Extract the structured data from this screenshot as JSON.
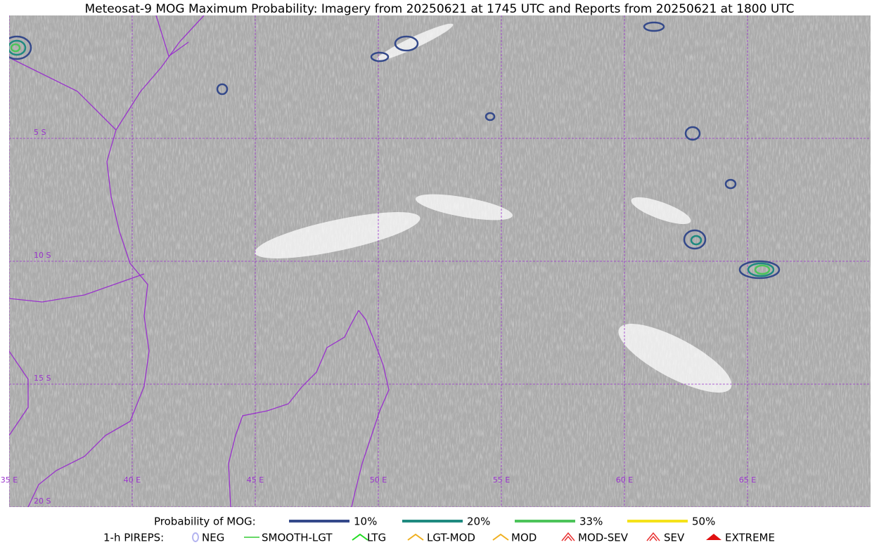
{
  "title": "Meteosat-9 MOG Maximum Probability: Imagery from 20250621 at 1745 UTC and Reports from 20250621 at 1800 UTC",
  "map": {
    "longitude_labels": [
      "35 E",
      "40 E",
      "45 E",
      "50 E",
      "55 E",
      "60 E",
      "65 E"
    ],
    "latitude_labels": [
      "5 S",
      "10 S",
      "15 S",
      "20 S"
    ]
  },
  "legend": {
    "probability": {
      "label": "Probability of MOG:",
      "entries": [
        {
          "label": "10%",
          "color": "#34498a"
        },
        {
          "label": "20%",
          "color": "#1f8a80"
        },
        {
          "label": "33%",
          "color": "#4cc45a"
        },
        {
          "label": "50%",
          "color": "#f5e21a"
        }
      ]
    },
    "pireps": {
      "label": "1-h PIREPS:",
      "entries": [
        {
          "label": "NEG",
          "color": "#b4b4f0"
        },
        {
          "label": "SMOOTH-LGT",
          "color": "#33cc33"
        },
        {
          "label": "LTG",
          "color": "#22dd22"
        },
        {
          "label": "LGT-MOD",
          "color": "#f0b020"
        },
        {
          "label": "MOD",
          "color": "#f0b020"
        },
        {
          "label": "MOD-SEV",
          "color": "#e83030"
        },
        {
          "label": "SEV",
          "color": "#e83030"
        },
        {
          "label": "EXTREME",
          "color": "#e01010"
        }
      ]
    }
  }
}
